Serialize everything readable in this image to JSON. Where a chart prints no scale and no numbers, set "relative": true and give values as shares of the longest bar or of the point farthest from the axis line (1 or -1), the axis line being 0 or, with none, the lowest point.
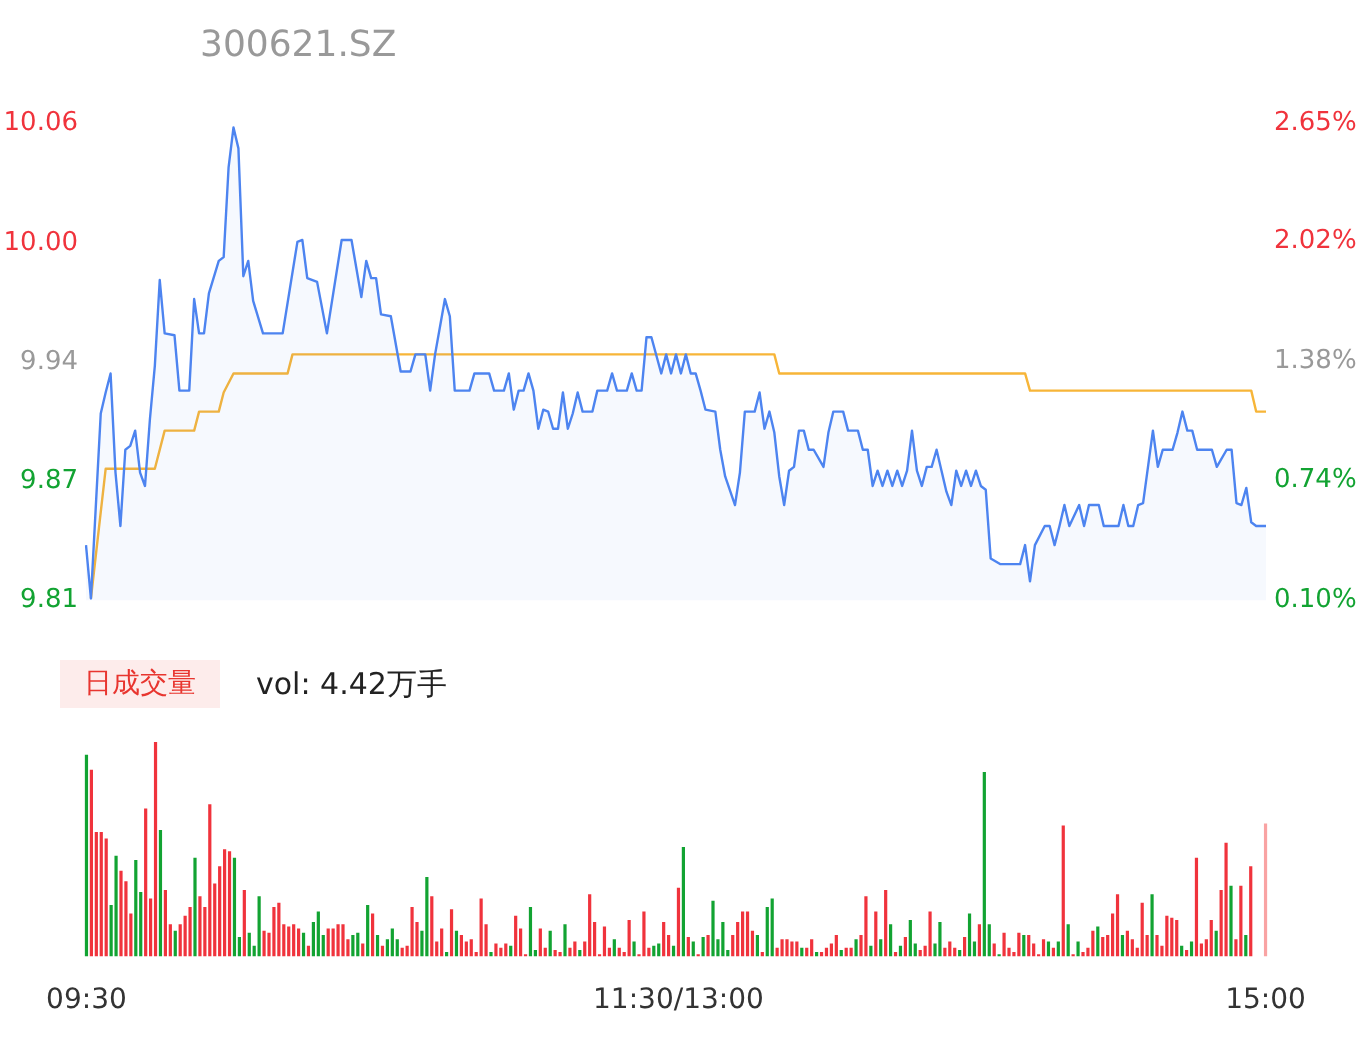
{
  "chart_data": [
    {
      "type": "line",
      "title": "300621.SZ",
      "categories": [
        null,
        null,
        null,
        null,
        null,
        null,
        null,
        null,
        null,
        null,
        null,
        null,
        null,
        null,
        null,
        null,
        null,
        null,
        null,
        null,
        null,
        null,
        null,
        null,
        null,
        null,
        null,
        null,
        null,
        null,
        null,
        null,
        null,
        null,
        null,
        null,
        null,
        null,
        null,
        null,
        null,
        null,
        null,
        null,
        null,
        null,
        null,
        null,
        null,
        null,
        null,
        null,
        null,
        null,
        null,
        null,
        null,
        null,
        null,
        null,
        null,
        null,
        null,
        null,
        null,
        null,
        null,
        null,
        null,
        null,
        null,
        null,
        null,
        null,
        null,
        null,
        null,
        null,
        null,
        null,
        null,
        null,
        null,
        null,
        null,
        null,
        null,
        null,
        null,
        null,
        null,
        null,
        null,
        null,
        null,
        null,
        null,
        null,
        null,
        null,
        null,
        null,
        null,
        null,
        null,
        null,
        null,
        null,
        null,
        null,
        null,
        null,
        null,
        null,
        null,
        null,
        null,
        null,
        null,
        null,
        null,
        null,
        null,
        null,
        null,
        null,
        null,
        null,
        null,
        null,
        null,
        null,
        null,
        null,
        null,
        null,
        null,
        null,
        null,
        null,
        null,
        null,
        null,
        null,
        null,
        null,
        null,
        null,
        null,
        null,
        null,
        null,
        null,
        null,
        null,
        null,
        null,
        null,
        null,
        null,
        null,
        null,
        null,
        null,
        null,
        null,
        null,
        null,
        null,
        null,
        null,
        null,
        null,
        null,
        null,
        null,
        null,
        null,
        null,
        null,
        null,
        null,
        null,
        null,
        null,
        null,
        null,
        null,
        null,
        null,
        null,
        null,
        null,
        null,
        null,
        null,
        null,
        null,
        null,
        null,
        null,
        null,
        null,
        null,
        null,
        null,
        null,
        null,
        null,
        null,
        null,
        null,
        null,
        null,
        null,
        null,
        null,
        null,
        null,
        null,
        null,
        null,
        null,
        null,
        null,
        null,
        null,
        null,
        null,
        null,
        null,
        null,
        null,
        null,
        null,
        null,
        null,
        null,
        null,
        null,
        null
      ],
      "ylim": [
        9.81,
        10.06
      ],
      "yticks": [
        {
          "value": 9.81,
          "label": "9.81"
        },
        {
          "value": 9.8725,
          "label": "9.87"
        },
        {
          "value": 9.935,
          "label": "9.94"
        },
        {
          "value": 9.9975,
          "label": "10.00"
        },
        {
          "value": 10.06,
          "label": "10.06"
        }
      ],
      "y2lim": [
        0.1,
        2.65
      ],
      "y2ticks": [
        {
          "value": 0.1,
          "label": "0.10%"
        },
        {
          "value": 0.74,
          "label": "0.74%"
        },
        {
          "value": 1.38,
          "label": "1.38%"
        },
        {
          "value": 2.02,
          "label": "2.02%"
        },
        {
          "value": 2.65,
          "label": "2.65%"
        }
      ],
      "tick_labels": "y",
      "series": [
        {
          "type": "area",
          "color": "#4d84f0",
          "values": [
            9.839,
            9.811,
            null,
            9.908,
            9.919,
            9.929,
            9.877,
            9.849,
            9.889,
            9.891,
            9.899,
            9.877,
            9.87,
            9.905,
            9.933,
            9.978,
            9.95,
            null,
            9.949,
            9.92,
            null,
            9.92,
            9.968,
            9.95,
            9.95,
            9.971,
            null,
            9.988,
            9.99,
            10.037,
            10.058,
            10.047,
            9.98,
            9.988,
            9.967,
            null,
            9.95,
            null,
            null,
            null,
            9.95,
            null,
            null,
            9.998,
            9.999,
            9.979,
            null,
            9.977,
            null,
            9.95,
            null,
            null,
            9.999,
            null,
            9.999,
            null,
            9.969,
            9.988,
            9.979,
            9.979,
            9.96,
            null,
            9.959,
            null,
            9.93,
            null,
            9.93,
            9.939,
            null,
            9.939,
            9.92,
            9.939,
            null,
            9.968,
            9.959,
            9.92,
            null,
            9.92,
            9.92,
            9.929,
            null,
            null,
            9.929,
            9.92,
            null,
            9.92,
            9.929,
            9.91,
            9.92,
            9.92,
            9.929,
            9.92,
            9.9,
            9.91,
            9.909,
            9.9,
            9.9,
            9.919,
            9.9,
            9.908,
            9.919,
            9.909,
            null,
            9.909,
            9.92,
            null,
            9.92,
            9.929,
            9.92,
            null,
            9.92,
            9.929,
            9.92,
            9.92,
            9.948,
            9.948,
            null,
            9.929,
            9.939,
            9.929,
            9.939,
            9.929,
            9.939,
            9.929,
            9.929,
            9.92,
            9.91,
            null,
            9.909,
            9.889,
            9.875,
            null,
            9.86,
            9.877,
            9.909,
            null,
            9.909,
            9.919,
            9.9,
            9.909,
            9.898,
            9.875,
            9.86,
            9.878,
            9.88,
            9.899,
            9.899,
            9.889,
            9.889,
            null,
            9.88,
            9.898,
            9.909,
            null,
            9.909,
            9.899,
            null,
            9.899,
            9.889,
            9.889,
            9.87,
            9.878,
            9.87,
            9.878,
            9.87,
            9.878,
            9.87,
            9.878,
            9.899,
            9.878,
            9.87,
            9.88,
            9.88,
            9.889,
            9.878,
            9.867,
            9.86,
            9.878,
            9.87,
            9.878,
            9.87,
            9.878,
            9.87,
            9.868,
            9.832,
            null,
            9.829,
            9.829,
            null,
            null,
            9.829,
            9.839,
            9.82,
            9.839,
            null,
            9.849,
            9.849,
            9.839,
            9.849,
            9.86,
            9.849,
            null,
            9.86,
            9.849,
            9.86,
            null,
            9.86,
            9.849,
            null,
            null,
            9.849,
            9.86,
            9.849,
            9.849,
            9.86,
            9.861,
            null,
            9.899,
            9.88,
            9.889,
            null,
            9.889,
            9.898,
            9.909,
            9.899,
            9.899,
            9.889,
            null,
            null,
            9.889,
            9.88,
            null,
            9.889,
            9.889,
            9.861,
            9.86,
            9.869,
            9.851,
            9.849,
            null,
            9.849
          ]
        },
        {
          "type": "line",
          "color": "#f7b538",
          "values": [
            null,
            9.811,
            null,
            null,
            9.879,
            null,
            null,
            null,
            null,
            null,
            null,
            null,
            null,
            null,
            9.879,
            null,
            9.899,
            null,
            null,
            null,
            null,
            null,
            9.899,
            9.909,
            null,
            null,
            null,
            9.909,
            9.919,
            null,
            9.929,
            null,
            null,
            null,
            null,
            null,
            null,
            null,
            null,
            null,
            null,
            9.929,
            9.939,
            null,
            null,
            null,
            null,
            null,
            null,
            null,
            null,
            null,
            null,
            null,
            null,
            null,
            null,
            null,
            null,
            null,
            null,
            null,
            null,
            null,
            null,
            null,
            null,
            null,
            null,
            null,
            null,
            null,
            null,
            null,
            null,
            null,
            null,
            null,
            null,
            null,
            null,
            null,
            null,
            null,
            null,
            null,
            null,
            null,
            null,
            null,
            null,
            null,
            null,
            null,
            null,
            null,
            null,
            null,
            null,
            null,
            null,
            null,
            null,
            null,
            null,
            null,
            null,
            null,
            null,
            null,
            null,
            null,
            null,
            null,
            null,
            null,
            null,
            null,
            null,
            null,
            null,
            null,
            null,
            null,
            null,
            null,
            null,
            null,
            null,
            null,
            null,
            null,
            null,
            null,
            null,
            null,
            null,
            null,
            null,
            null,
            9.939,
            9.929,
            null,
            null,
            null,
            null,
            null,
            null,
            null,
            null,
            null,
            null,
            null,
            null,
            null,
            null,
            null,
            null,
            null,
            null,
            null,
            null,
            null,
            null,
            null,
            null,
            null,
            null,
            null,
            null,
            null,
            null,
            null,
            null,
            null,
            null,
            null,
            null,
            null,
            null,
            null,
            null,
            null,
            null,
            null,
            null,
            null,
            null,
            null,
            null,
            null,
            9.929,
            9.92,
            null,
            null,
            null,
            null,
            null,
            null,
            null,
            null,
            null,
            null,
            null,
            null,
            null,
            null,
            null,
            null,
            null,
            null,
            null,
            null,
            null,
            null,
            null,
            null,
            null,
            null,
            null,
            null,
            null,
            null,
            null,
            null,
            null,
            null,
            null,
            null,
            null,
            null,
            null,
            null,
            null,
            null,
            null,
            null,
            9.92,
            9.909,
            null,
            9.909
          ]
        }
      ]
    },
    {
      "type": "bar",
      "title": "日成交量",
      "annotations": [
        "vol: 4.42万手"
      ],
      "relative": true,
      "categories": [
        "09:30",
        null,
        null,
        null,
        null,
        null,
        null,
        null,
        null,
        null,
        null,
        null,
        null,
        null,
        null,
        null,
        null,
        null,
        null,
        null,
        null,
        null,
        null,
        null,
        null,
        null,
        null,
        null,
        null,
        null,
        null,
        null,
        null,
        null,
        null,
        null,
        null,
        null,
        null,
        null,
        null,
        null,
        null,
        null,
        null,
        null,
        null,
        null,
        null,
        null,
        null,
        null,
        null,
        null,
        null,
        null,
        null,
        null,
        null,
        null,
        null,
        null,
        null,
        null,
        null,
        null,
        null,
        null,
        null,
        null,
        null,
        null,
        null,
        null,
        null,
        null,
        null,
        null,
        null,
        null,
        null,
        null,
        null,
        null,
        null,
        null,
        null,
        null,
        null,
        null,
        null,
        null,
        null,
        null,
        null,
        null,
        null,
        null,
        null,
        null,
        null,
        null,
        null,
        null,
        null,
        null,
        null,
        null,
        null,
        null,
        null,
        null,
        null,
        null,
        null,
        null,
        null,
        null,
        null,
        null,
        "11:30/13:00",
        null,
        null,
        null,
        null,
        null,
        null,
        null,
        null,
        null,
        null,
        null,
        null,
        null,
        null,
        null,
        null,
        null,
        null,
        null,
        null,
        null,
        null,
        null,
        null,
        null,
        null,
        null,
        null,
        null,
        null,
        null,
        null,
        null,
        null,
        null,
        null,
        null,
        null,
        null,
        null,
        null,
        null,
        null,
        null,
        null,
        null,
        null,
        null,
        null,
        null,
        null,
        null,
        null,
        null,
        null,
        null,
        null,
        null,
        null,
        null,
        null,
        null,
        null,
        null,
        null,
        null,
        null,
        null,
        null,
        null,
        null,
        null,
        null,
        null,
        null,
        null,
        null,
        null,
        null,
        null,
        null,
        null,
        null,
        null,
        null,
        null,
        null,
        null,
        null,
        null,
        null,
        null,
        null,
        null,
        null,
        null,
        null,
        null,
        null,
        null,
        null,
        null,
        null,
        null,
        null,
        null,
        null,
        null,
        null,
        null,
        null,
        null,
        null,
        null,
        null,
        null,
        null,
        null,
        "15:00"
      ],
      "values": [
        0.94,
        0.87,
        0.58,
        0.58,
        0.55,
        0.24,
        0.47,
        0.4,
        0.35,
        0.2,
        0.45,
        0.3,
        0.69,
        0.27,
        1,
        0.59,
        0.31,
        0.15,
        0.12,
        0.15,
        0.19,
        0.23,
        0.46,
        0.28,
        0.23,
        0.71,
        0.34,
        0.42,
        0.5,
        0.49,
        0.46,
        0.09,
        0.31,
        0.11,
        0.05,
        0.28,
        0.12,
        0.11,
        0.23,
        0.25,
        0.15,
        0.14,
        0.15,
        0.13,
        0.11,
        0.05,
        0.16,
        0.21,
        0.1,
        0.13,
        0.13,
        0.15,
        0.15,
        0.08,
        0.1,
        0.11,
        0.06,
        0.24,
        0.2,
        0.1,
        0.05,
        0.08,
        0.13,
        0.08,
        0.04,
        0.05,
        0.23,
        0.16,
        0.12,
        0.37,
        0.28,
        0.07,
        0.13,
        0.02,
        0.22,
        0.12,
        0.1,
        0.07,
        0.08,
        0.02,
        0.27,
        0.15,
        0.02,
        0.06,
        0.04,
        0.06,
        0.05,
        0.19,
        0.13,
        0.01,
        0.23,
        0.03,
        0.13,
        0.04,
        0.12,
        0.03,
        0.02,
        0.15,
        0.04,
        0.07,
        0.03,
        0.07,
        0.29,
        0.16,
        0.01,
        0.14,
        0.04,
        0.08,
        0.04,
        0.02,
        0.17,
        0.07,
        0.01,
        0.21,
        0.04,
        0.05,
        0.06,
        0.16,
        0.1,
        0.05,
        0.32,
        0.51,
        0.09,
        0.07,
        0.01,
        0.09,
        0.1,
        0.26,
        0.08,
        0.16,
        0.03,
        0.1,
        0.16,
        0.21,
        0.21,
        0.12,
        0.1,
        0.02,
        0.23,
        0.27,
        0.04,
        0.08,
        0.08,
        0.07,
        0.07,
        0.04,
        0.04,
        0.08,
        0.02,
        0.02,
        0.04,
        0.06,
        0.1,
        0.03,
        0.04,
        0.04,
        0.08,
        0.1,
        0.28,
        0.05,
        0.21,
        0.08,
        0.31,
        0.15,
        0.02,
        0.05,
        0.09,
        0.17,
        0.06,
        0.03,
        0.05,
        0.21,
        0.06,
        0.16,
        0.04,
        0.07,
        0.04,
        0.03,
        0.09,
        0.2,
        0.07,
        0.15,
        0.86,
        0.15,
        0.06,
        0.01,
        0.11,
        0.04,
        0.02,
        0.11,
        0.1,
        0.1,
        0.06,
        0.01,
        0.08,
        0.07,
        0.04,
        0.07,
        0.61,
        0.15,
        0.01,
        0.07,
        0.02,
        0.04,
        0.12,
        0.14,
        0.09,
        0.1,
        0.2,
        0.29,
        0.1,
        0.12,
        0.08,
        0.04,
        0.25,
        0.1,
        0.29,
        0.1,
        0.05,
        0.19,
        0.18,
        0.17,
        0.05,
        0.03,
        0.07,
        0.46,
        0.06,
        0.08,
        0.17,
        0.12,
        0.31,
        0.53,
        0.33,
        0.08,
        0.33,
        0.1,
        0.42,
        null,
        null,
        0.62
      ],
      "colors": [
        "#12a332",
        "#f0333c",
        "#f0333c",
        "#f0333c",
        "#f0333c",
        "#12a332",
        "#12a332",
        "#f0333c",
        "#f0333c",
        "#f0333c",
        "#12a332",
        "#12a332",
        "#f0333c",
        "#f0333c",
        "#f0333c",
        "#12a332",
        "#f0333c",
        "#f0333c",
        "#12a332",
        "#f0333c",
        "#f0333c",
        "#f0333c",
        "#12a332",
        "#f0333c",
        "#f0333c",
        "#f0333c",
        "#f0333c",
        "#f0333c",
        "#f0333c",
        "#f0333c",
        "#12a332",
        "#12a332",
        "#f0333c",
        "#12a332",
        "#12a332",
        "#12a332",
        "#f0333c",
        "#f0333c",
        "#f0333c",
        "#f0333c",
        "#f0333c",
        "#f0333c",
        "#f0333c",
        "#f0333c",
        "#12a332",
        "#f0333c",
        "#12a332",
        "#12a332",
        "#12a332",
        "#f0333c",
        "#f0333c",
        "#f0333c",
        "#f0333c",
        "#f0333c",
        "#12a332",
        "#12a332",
        "#f0333c",
        "#12a332",
        "#f0333c",
        "#12a332",
        "#f0333c",
        "#12a332",
        "#12a332",
        "#12a332",
        "#f0333c",
        "#f0333c",
        "#f0333c",
        "#f0333c",
        "#12a332",
        "#12a332",
        "#f0333c",
        "#f0333c",
        "#f0333c",
        "#12a332",
        "#f0333c",
        "#12a332",
        "#f0333c",
        "#f0333c",
        "#f0333c",
        "#f0333c",
        "#f0333c",
        "#f0333c",
        "#12a332",
        "#f0333c",
        "#f0333c",
        "#f0333c",
        "#12a332",
        "#f0333c",
        "#f0333c",
        "#f0333c",
        "#12a332",
        "#12a332",
        "#f0333c",
        "#f0333c",
        "#12a332",
        "#f0333c",
        "#f0333c",
        "#12a332",
        "#f0333c",
        "#f0333c",
        "#12a332",
        "#f0333c",
        "#f0333c",
        "#f0333c",
        "#f0333c",
        "#f0333c",
        "#f0333c",
        "#12a332",
        "#f0333c",
        "#f0333c",
        "#f0333c",
        "#12a332",
        "#f0333c",
        "#f0333c",
        "#f0333c",
        "#12a332",
        "#12a332",
        "#f0333c",
        "#f0333c",
        "#12a332",
        "#f0333c",
        "#12a332",
        "#f0333c",
        "#12a332",
        "#f0333c",
        "#12a332",
        "#f0333c",
        "#12a332",
        "#12a332",
        "#12a332",
        "#12a332",
        "#f0333c",
        "#f0333c",
        "#f0333c",
        "#f0333c",
        "#f0333c",
        "#12a332",
        "#f0333c",
        "#12a332",
        "#12a332",
        "#f0333c",
        "#f0333c",
        "#f0333c",
        "#f0333c",
        "#f0333c",
        "#12a332",
        "#f0333c",
        "#f0333c",
        "#12a332",
        "#f0333c",
        "#f0333c",
        "#f0333c",
        "#f0333c",
        "#12a332",
        "#f0333c",
        "#f0333c",
        "#12a332",
        "#f0333c",
        "#f0333c",
        "#12a332",
        "#f0333c",
        "#12a332",
        "#f0333c",
        "#12a332",
        "#f0333c",
        "#12a332",
        "#f0333c",
        "#12a332",
        "#12a332",
        "#f0333c",
        "#f0333c",
        "#f0333c",
        "#12a332",
        "#12a332",
        "#f0333c",
        "#f0333c",
        "#f0333c",
        "#12a332",
        "#f0333c",
        "#12a332",
        "#12a332",
        "#f0333c",
        "#12a332",
        "#12a332",
        "#f0333c",
        "#12a332",
        "#f0333c",
        "#f0333c",
        "#f0333c",
        "#f0333c",
        "#12a332",
        "#f0333c",
        "#f0333c",
        "#f0333c",
        "#f0333c",
        "#12a332",
        "#f0333c",
        "#12a332",
        "#f0333c",
        "#12a332",
        "#f0333c",
        "#12a332",
        "#f0333c",
        "#f0333c",
        "#f0333c",
        "#12a332",
        "#f0333c",
        "#f0333c",
        "#f0333c",
        "#f0333c",
        "#12a332",
        "#f0333c",
        "#f0333c",
        "#f0333c",
        "#f0333c",
        "#f0333c",
        "#12a332",
        "#f0333c",
        "#f0333c",
        "#f0333c",
        "#f0333c",
        "#f0333c",
        "#12a332",
        "#f0333c",
        "#12a332",
        "#f0333c",
        "#f0333c",
        "#f0333c",
        "#f0333c",
        "#12a332",
        "#f0333c",
        "#f0333c",
        "#12a332",
        "#f0333c",
        "#f0333c",
        "#12a332",
        "#f0333c",
        "#f0333c",
        "#f0333c",
        "#f9a3a3"
      ]
    }
  ]
}
